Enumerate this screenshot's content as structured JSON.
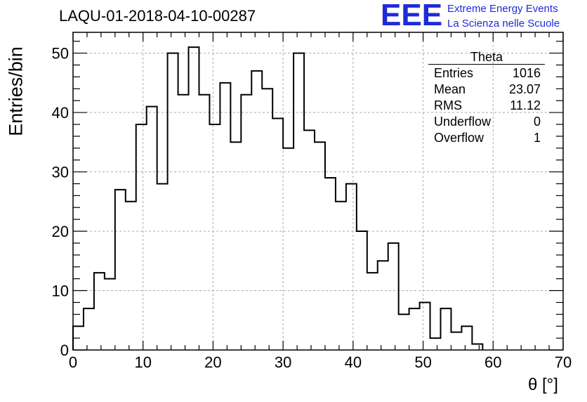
{
  "header": {
    "title": "LAQU-01-2018-04-10-00287"
  },
  "logo": {
    "mark": "EEE",
    "line1": "Extreme Energy Events",
    "line2": "La Scienza nelle Scuole",
    "color": "#1e2bd8"
  },
  "stats": {
    "name": "Theta",
    "rows": [
      {
        "label": "Entries",
        "value": "1016"
      },
      {
        "label": "Mean",
        "value": "23.07"
      },
      {
        "label": "RMS",
        "value": "11.12"
      },
      {
        "label": "Underflow",
        "value": "0"
      },
      {
        "label": "Overflow",
        "value": "1"
      }
    ]
  },
  "chart_data": {
    "type": "bar",
    "style": "step-histogram",
    "title": "LAQU-01-2018-04-10-00287",
    "xlabel": "θ [°]",
    "ylabel": "Entries/bin",
    "xlim": [
      0,
      70
    ],
    "ylim": [
      0,
      53.5
    ],
    "bin_width": 1.5,
    "bin_start": 0,
    "values": [
      4,
      7,
      13,
      12,
      27,
      25,
      38,
      41,
      28,
      50,
      43,
      51,
      43,
      38,
      45,
      35,
      43,
      47,
      44,
      39,
      34,
      50,
      37,
      35,
      29,
      25,
      28,
      20,
      13,
      15,
      18,
      6,
      7,
      8,
      2,
      7,
      3,
      4,
      1
    ],
    "x_ticks": [
      "0",
      "10",
      "20",
      "30",
      "40",
      "50",
      "60",
      "70"
    ],
    "x_tick_values": [
      0,
      10,
      20,
      30,
      40,
      50,
      60,
      70
    ],
    "y_ticks": [
      "0",
      "10",
      "20",
      "30",
      "40",
      "50"
    ],
    "y_tick_values": [
      0,
      10,
      20,
      30,
      40,
      50
    ],
    "grid": true,
    "legend": "top-right stats box",
    "line_color": "#000000",
    "grid_color": "#aaaaaa"
  }
}
